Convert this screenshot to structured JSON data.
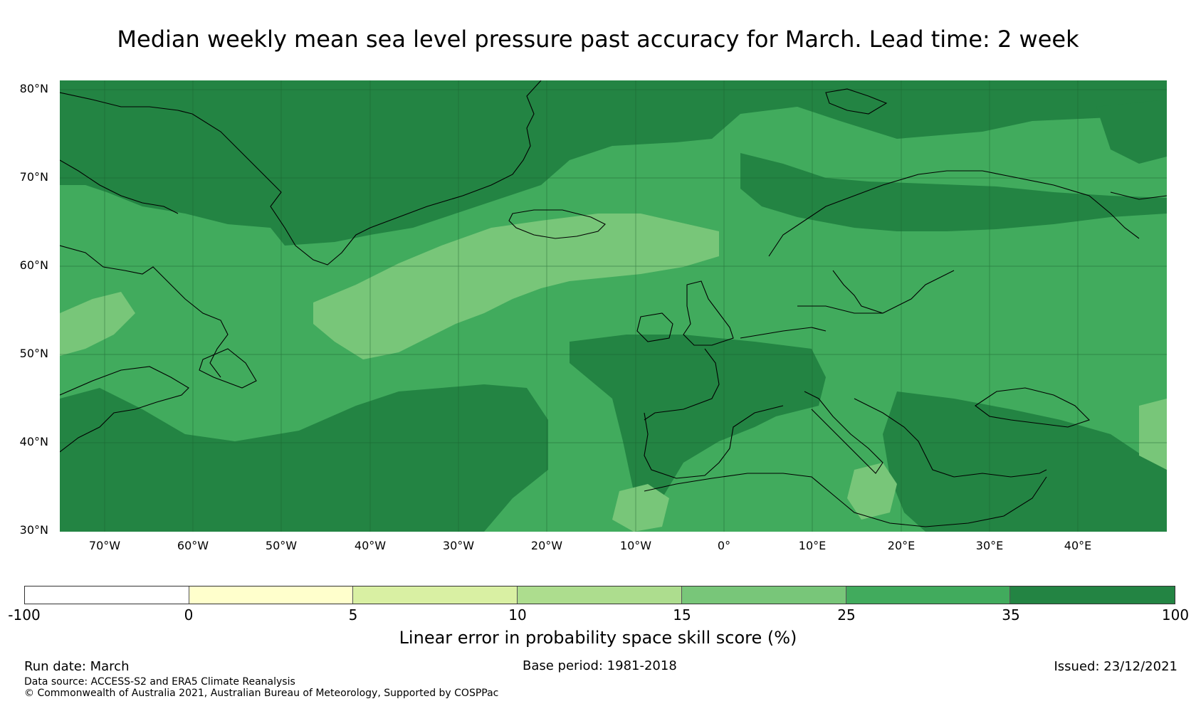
{
  "title": "Median weekly mean sea level pressure past accuracy for March. Lead time: 2 week",
  "map": {
    "lat_labels": [
      "80°N",
      "70°N",
      "60°N",
      "50°N",
      "40°N",
      "30°N"
    ],
    "lon_labels": [
      "70°W",
      "60°W",
      "50°W",
      "40°W",
      "30°W",
      "20°W",
      "10°W",
      "0°",
      "10°E",
      "20°E",
      "30°E",
      "40°E"
    ],
    "lat_range": [
      30,
      81
    ],
    "lon_range": [
      -75,
      50
    ],
    "colors": {
      "very_high": "#238443",
      "high": "#41ab5d",
      "mid": "#78c679",
      "coast": "#000000",
      "grid": "#1a5c2c"
    }
  },
  "colorbar": {
    "label": "Linear error in probability space skill score (%)",
    "ticks": [
      "-100",
      "0",
      "5",
      "10",
      "15",
      "25",
      "35",
      "100"
    ],
    "colors": [
      "#ffffff",
      "#ffffcc",
      "#d9f0a3",
      "#addd8e",
      "#78c679",
      "#41ab5d",
      "#238443"
    ]
  },
  "footer": {
    "run_date": "Run date: March",
    "base_period": "Base period: 1981-2018",
    "issued": "Issued: 23/12/2021",
    "data_source": "Data source: ACCESS-S2 and ERA5 Climate Reanalysis",
    "copyright": "© Commonwealth of Australia 2021, Australian Bureau of Meteorology, Supported by COSPPac"
  }
}
